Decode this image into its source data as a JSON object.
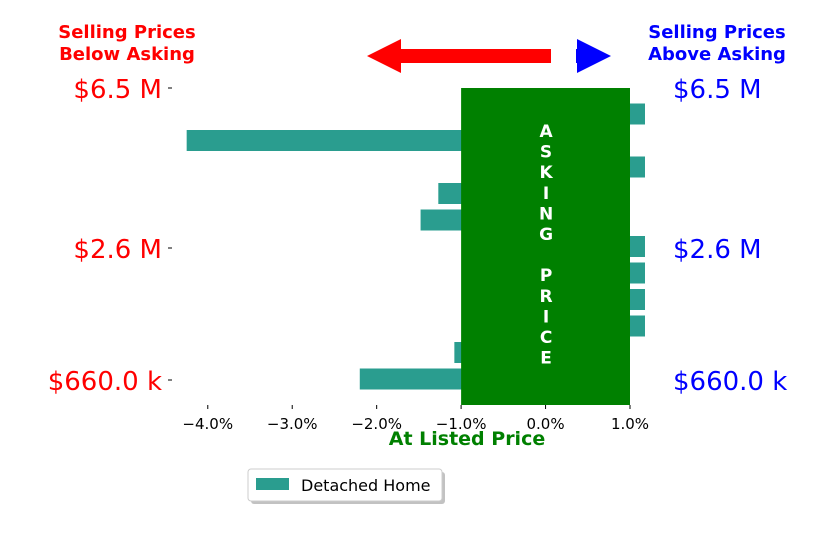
{
  "chart_data": {
    "type": "bar",
    "orientation": "horizontal",
    "title_left": [
      "Selling Prices",
      "Below Asking"
    ],
    "title_right": [
      "Selling Prices",
      "Above Asking"
    ],
    "xlabel": "At Listed Price",
    "band_label": "ASKING PRICE",
    "band_letters": [
      "A",
      "S",
      "K",
      "I",
      "N",
      "G",
      "",
      "P",
      "R",
      "I",
      "C",
      "E"
    ],
    "y_ticks_left": [
      "$6.5 M",
      "$2.6 M",
      "$660.0 k"
    ],
    "y_ticks_right": [
      "$6.5 M",
      "$2.6 M",
      "$660.0 k"
    ],
    "x_ticks": [
      {
        "value": -4.0,
        "label": "−4.0%"
      },
      {
        "value": -3.0,
        "label": "−3.0%"
      },
      {
        "value": -2.0,
        "label": "−2.0%"
      },
      {
        "value": -1.0,
        "label": "−1.0%"
      },
      {
        "value": 0.0,
        "label": "0.0%"
      },
      {
        "value": 1.0,
        "label": "1.0%"
      }
    ],
    "xlim": [
      -4.4,
      1.0
    ],
    "band_range": [
      -1.0,
      1.0
    ],
    "series": [
      {
        "name": "Detached Home",
        "color": "#2a9d8f",
        "values": [
          1.2,
          -4.25,
          1.2,
          -1.27,
          -1.48,
          1.2,
          1.2,
          1.2,
          1.2,
          -1.08,
          -2.2
        ]
      }
    ],
    "colors": {
      "below": "#ff0000",
      "above": "#0000ff",
      "band": "#008000",
      "xlabel": "#008000",
      "band_text": "#ffffff"
    },
    "legend": {
      "position": "bottom-center",
      "label": "Detached Home"
    }
  }
}
